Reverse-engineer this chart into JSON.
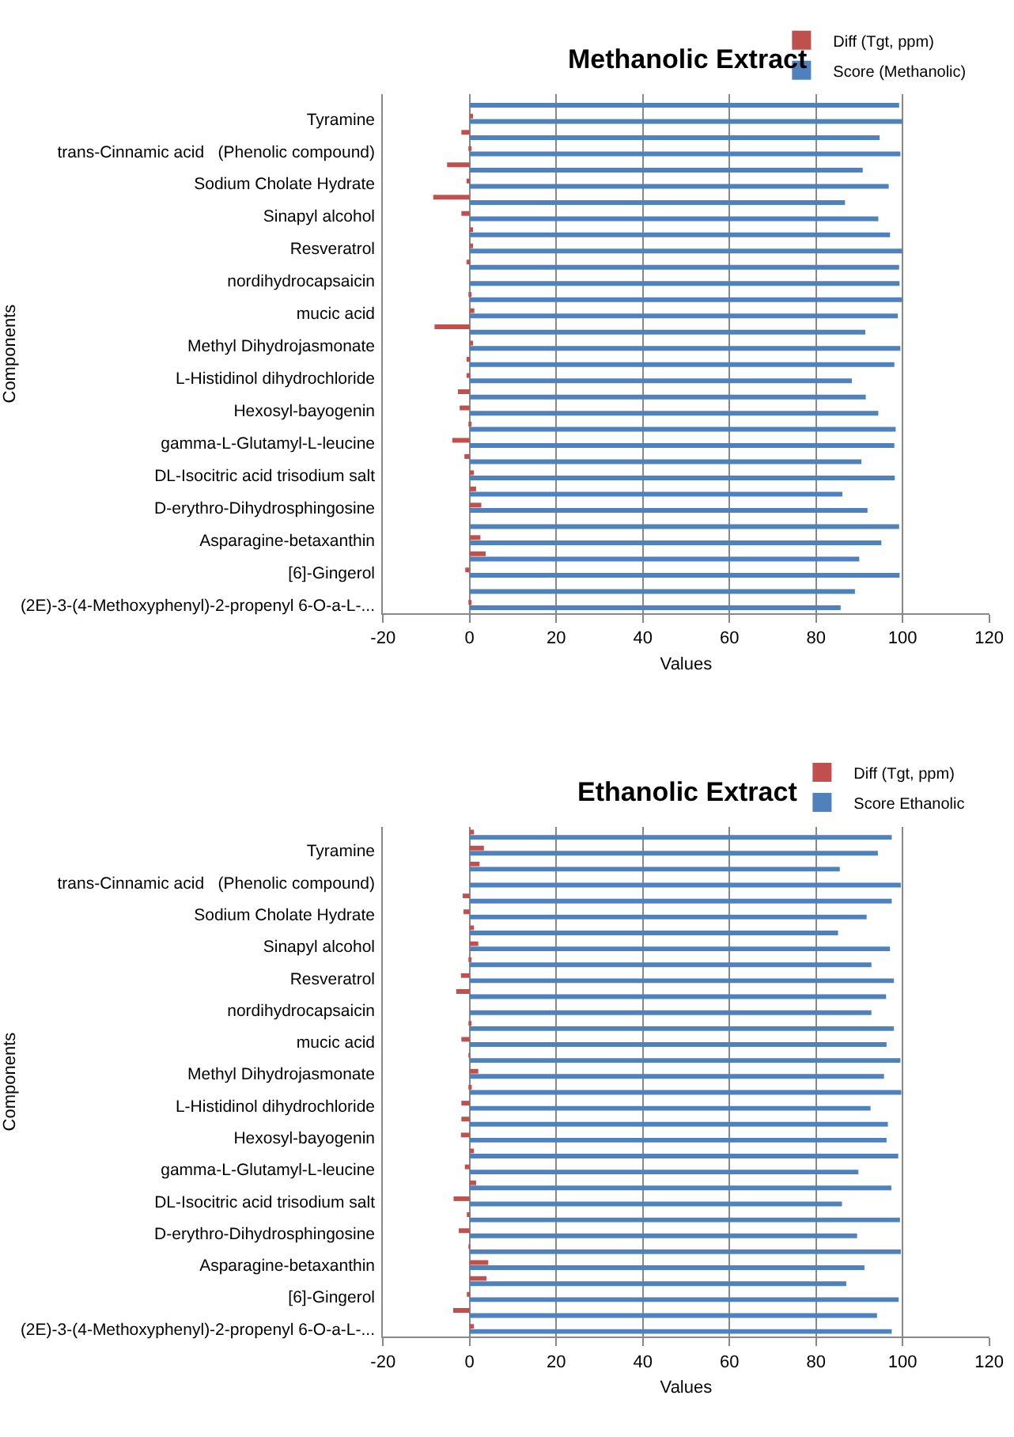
{
  "chart_data": [
    {
      "type": "bar",
      "orientation": "horizontal",
      "title": "Methanolic Extract",
      "xlabel": "Values",
      "ylabel": "Components",
      "categories": [
        null,
        "Tyramine",
        null,
        "trans-Cinnamic acid   (Phenolic compound)",
        null,
        "Sodium Cholate Hydrate",
        null,
        "Sinapyl alcohol",
        null,
        "Resveratrol",
        null,
        "nordihydrocapsaicin",
        null,
        "mucic acid",
        null,
        "Methyl Dihydrojasmonate",
        null,
        "L-Histidinol dihydrochloride",
        null,
        "Hexosyl-bayogenin",
        null,
        "gamma-L-Glutamyl-L-leucine",
        null,
        "DL-Isocitric acid trisodium salt",
        null,
        "D-erythro-Dihydrosphingosine",
        null,
        "Asparagine-betaxanthin",
        null,
        "[6]-Gingerol",
        null,
        "(2E)-3-(4-Methoxyphenyl)-2-propenyl 6-O-a-L-..."
      ],
      "series": [
        {
          "name": "Diff (Tgt, ppm)",
          "color": "#c0504d",
          "values": [
            0,
            0.8,
            -1.9,
            0.4,
            -5.2,
            -0.7,
            -8.4,
            -1.9,
            0.8,
            0.8,
            -0.7,
            0,
            0.4,
            1.1,
            -8.1,
            0.8,
            -0.7,
            -0.7,
            -2.7,
            -2.3,
            0.4,
            -4.0,
            -1.2,
            1.0,
            1.5,
            2.7,
            0,
            2.5,
            3.7,
            -1.0,
            0,
            0.3
          ]
        },
        {
          "name": "Score (Methanolic)",
          "color": "#4f81bd",
          "values": [
            99.2,
            99.9,
            94.7,
            99.5,
            90.8,
            96.8,
            86.7,
            94.4,
            97.1,
            99.9,
            99.2,
            99.3,
            99.9,
            98.9,
            91.4,
            99.5,
            98.1,
            88.3,
            91.5,
            94.4,
            98.4,
            98.1,
            90.5,
            98.2,
            86.1,
            91.9,
            99.2,
            95.1,
            90.0,
            99.3,
            89.0,
            85.7
          ]
        }
      ],
      "xlim": [
        -20,
        120
      ],
      "xticks": [
        -20,
        0,
        20,
        40,
        60,
        80,
        100,
        120
      ],
      "grid": "x",
      "legend": "top right"
    },
    {
      "type": "bar",
      "orientation": "horizontal",
      "title": "Ethanolic Extract",
      "xlabel": "Values",
      "ylabel": "Components",
      "categories": [
        null,
        "Tyramine",
        null,
        "trans-Cinnamic acid   (Phenolic compound)",
        null,
        "Sodium Cholate Hydrate",
        null,
        "Sinapyl alcohol",
        null,
        "Resveratrol",
        null,
        "nordihydrocapsaicin",
        null,
        "mucic acid",
        null,
        "Methyl Dihydrojasmonate",
        null,
        "L-Histidinol dihydrochloride",
        null,
        "Hexosyl-bayogenin",
        null,
        "gamma-L-Glutamyl-L-leucine",
        null,
        "DL-Isocitric acid trisodium salt",
        null,
        "D-erythro-Dihydrosphingosine",
        null,
        "Asparagine-betaxanthin",
        null,
        "[6]-Gingerol",
        null,
        "(2E)-3-(4-Methoxyphenyl)-2-propenyl 6-O-a-L-..."
      ],
      "series": [
        {
          "name": "Diff (Tgt, ppm)",
          "color": "#c0504d",
          "values": [
            1.0,
            3.3,
            2.3,
            0,
            -1.6,
            -1.4,
            1.0,
            2.0,
            0.2,
            -2.0,
            -3.1,
            0,
            0.2,
            -1.9,
            -0.2,
            2.0,
            0.5,
            -1.9,
            -1.9,
            -2.0,
            1.0,
            -1.1,
            1.5,
            -3.7,
            -0.6,
            -2.5,
            -0.1,
            4.3,
            3.9,
            -0.4,
            -3.8,
            1.0
          ]
        },
        {
          "name": "Score Ethanolic",
          "color": "#4f81bd",
          "values": [
            97.5,
            94.3,
            85.5,
            99.6,
            97.5,
            91.7,
            85.1,
            97.1,
            92.8,
            98.0,
            96.2,
            92.8,
            98.0,
            96.3,
            99.5,
            95.7,
            99.7,
            92.6,
            96.6,
            96.3,
            99.0,
            89.8,
            97.4,
            86.0,
            99.4,
            89.5,
            99.6,
            91.2,
            87.0,
            99.1,
            94.1,
            97.5
          ]
        }
      ],
      "xlim": [
        -20,
        120
      ],
      "xticks": [
        -20,
        0,
        20,
        40,
        60,
        80,
        100,
        120
      ],
      "grid": "x",
      "legend": "top right"
    }
  ]
}
